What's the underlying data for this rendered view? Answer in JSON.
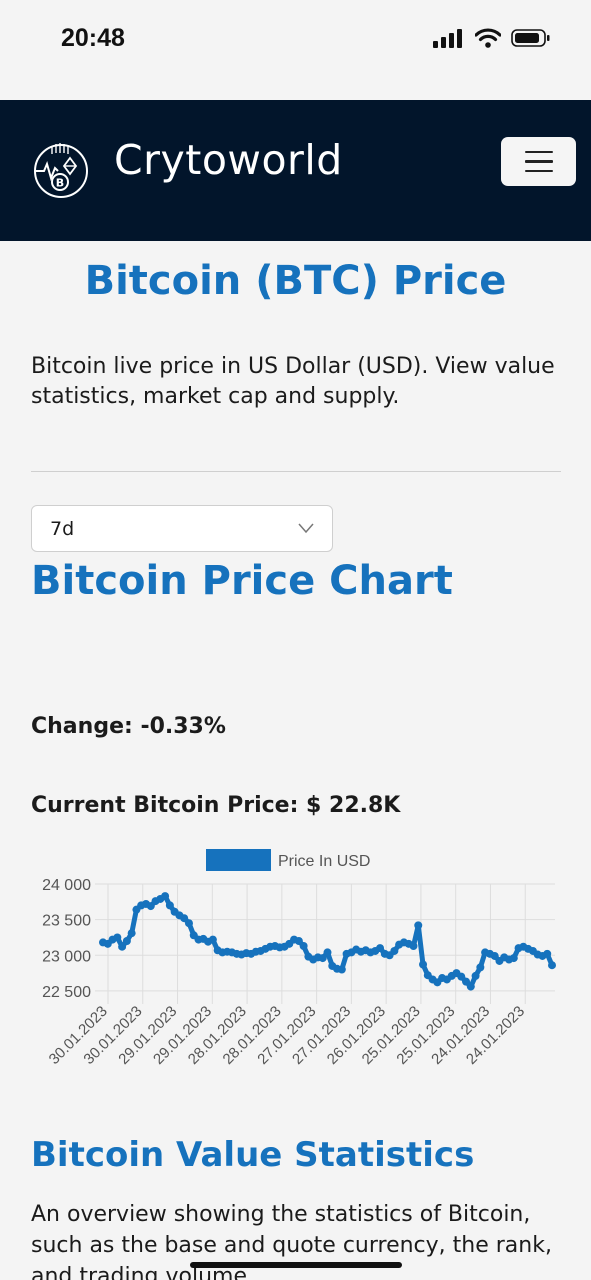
{
  "status_bar": {
    "time": "20:48"
  },
  "navbar": {
    "brand": "Crytoworld"
  },
  "page": {
    "title": "Bitcoin (BTC) Price",
    "intro": "Bitcoin live price in US Dollar (USD). View value statistics, market cap and supply.",
    "range_select": {
      "value": "7d"
    },
    "chart_heading": "Bitcoin Price Chart",
    "change": "Change: -0.33%",
    "current_price": "Current Bitcoin Price: $ 22.8K",
    "stats_heading": "Bitcoin Value Statistics",
    "stats_text": "An overview showing the statistics of Bitcoin, such as the base and quote currency, the rank, and trading volume"
  },
  "colors": {
    "navbar": "#02152b",
    "accent": "#1672bd",
    "series": "#1672bd"
  },
  "chart_data": {
    "type": "line",
    "legend": "Price In USD",
    "legend_position": "top-center",
    "grid": true,
    "y_ticks": [
      "24 000",
      "23 500",
      "23 000",
      "22 500"
    ],
    "ylim": [
      22400,
      24000
    ],
    "x_tick_labels": [
      "30.01.2023",
      "30.01.2023",
      "29.01.2023",
      "29.01.2023",
      "28.01.2023",
      "28.01.2023",
      "27.01.2023",
      "27.01.2023",
      "26.01.2023",
      "25.01.2023",
      "25.01.2023",
      "24.01.2023",
      "24.01.2023"
    ],
    "series": [
      {
        "name": "Price In USD",
        "values": [
          23180,
          23160,
          23220,
          23250,
          23120,
          23200,
          23310,
          23640,
          23700,
          23720,
          23690,
          23760,
          23790,
          23830,
          23700,
          23610,
          23560,
          23520,
          23450,
          23280,
          23220,
          23230,
          23190,
          23220,
          23070,
          23040,
          23050,
          23040,
          23020,
          23010,
          23030,
          23020,
          23050,
          23060,
          23090,
          23120,
          23130,
          23110,
          23120,
          23160,
          23220,
          23200,
          23130,
          22980,
          22940,
          22970,
          22960,
          23040,
          22850,
          22810,
          22800,
          23020,
          23040,
          23080,
          23050,
          23070,
          23040,
          23060,
          23100,
          23020,
          23000,
          23060,
          23150,
          23180,
          23160,
          23130,
          23420,
          22870,
          22720,
          22660,
          22620,
          22680,
          22660,
          22710,
          22750,
          22700,
          22630,
          22560,
          22710,
          22830,
          23040,
          23020,
          22990,
          22920,
          22970,
          22940,
          22960,
          23100,
          23120,
          23090,
          23060,
          23010,
          22990,
          23020,
          22860
        ]
      }
    ]
  }
}
